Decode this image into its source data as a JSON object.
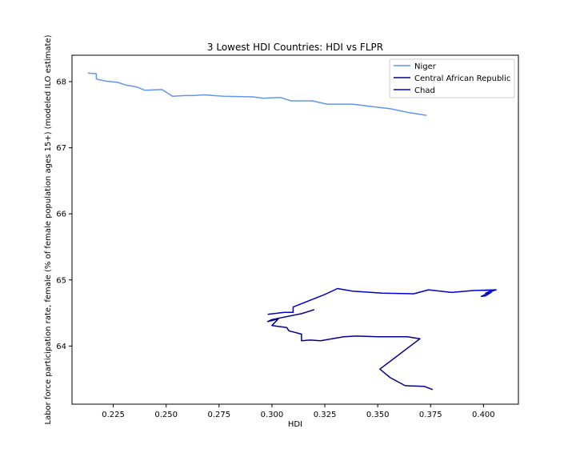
{
  "chart_data": {
    "type": "line",
    "title": "3 Lowest HDI Countries: HDI vs FLPR",
    "xlabel": "HDI",
    "ylabel": "Labor force participation rate, female (% of female population ages 15+) (modeled ILO estimate)",
    "xlim": [
      0.2055,
      0.4165
    ],
    "ylim": [
      63.12,
      68.4
    ],
    "xticks": [
      0.225,
      0.25,
      0.275,
      0.3,
      0.325,
      0.35,
      0.375,
      0.4
    ],
    "xtick_labels": [
      "0.225",
      "0.250",
      "0.275",
      "0.300",
      "0.325",
      "0.350",
      "0.375",
      "0.400"
    ],
    "yticks": [
      64,
      65,
      66,
      67,
      68
    ],
    "ytick_labels": [
      "64",
      "65",
      "66",
      "67",
      "68"
    ],
    "grid": false,
    "legend_position": "top-right",
    "series": [
      {
        "name": "Niger",
        "color": "#6495ED",
        "points": [
          [
            0.213,
            68.13
          ],
          [
            0.217,
            68.12
          ],
          [
            0.217,
            68.04
          ],
          [
            0.221,
            68.01
          ],
          [
            0.227,
            67.99
          ],
          [
            0.231,
            67.95
          ],
          [
            0.236,
            67.92
          ],
          [
            0.24,
            67.87
          ],
          [
            0.248,
            67.88
          ],
          [
            0.253,
            67.78
          ],
          [
            0.259,
            67.79
          ],
          [
            0.263,
            67.79
          ],
          [
            0.268,
            67.8
          ],
          [
            0.277,
            67.78
          ],
          [
            0.291,
            67.77
          ],
          [
            0.296,
            67.75
          ],
          [
            0.304,
            67.76
          ],
          [
            0.309,
            67.71
          ],
          [
            0.319,
            67.71
          ],
          [
            0.326,
            67.66
          ],
          [
            0.338,
            67.66
          ],
          [
            0.348,
            67.62
          ],
          [
            0.356,
            67.59
          ],
          [
            0.365,
            67.53
          ],
          [
            0.373,
            67.49
          ]
        ]
      },
      {
        "name": "Central African Republic",
        "color": "#00008B",
        "points": [
          [
            0.32,
            64.55
          ],
          [
            0.314,
            64.49
          ],
          [
            0.3,
            64.4
          ],
          [
            0.298,
            64.37
          ],
          [
            0.303,
            64.41
          ],
          [
            0.3,
            64.31
          ],
          [
            0.307,
            64.28
          ],
          [
            0.308,
            64.23
          ],
          [
            0.314,
            64.18
          ],
          [
            0.314,
            64.08
          ],
          [
            0.318,
            64.09
          ],
          [
            0.323,
            64.08
          ],
          [
            0.334,
            64.14
          ],
          [
            0.34,
            64.15
          ],
          [
            0.35,
            64.14
          ],
          [
            0.358,
            64.14
          ],
          [
            0.364,
            64.14
          ],
          [
            0.37,
            64.11
          ],
          [
            0.351,
            63.65
          ],
          [
            0.356,
            63.52
          ],
          [
            0.363,
            63.4
          ],
          [
            0.372,
            63.39
          ],
          [
            0.376,
            63.34
          ]
        ]
      },
      {
        "name": "Chad",
        "color": "#0000CD",
        "points": [
          [
            0.298,
            64.48
          ],
          [
            0.306,
            64.51
          ],
          [
            0.31,
            64.51
          ],
          [
            0.31,
            64.59
          ],
          [
            0.325,
            64.78
          ],
          [
            0.331,
            64.87
          ],
          [
            0.338,
            64.83
          ],
          [
            0.343,
            64.82
          ],
          [
            0.352,
            64.8
          ],
          [
            0.367,
            64.79
          ],
          [
            0.374,
            64.85
          ],
          [
            0.385,
            64.81
          ],
          [
            0.395,
            64.84
          ],
          [
            0.406,
            64.85
          ],
          [
            0.401,
            64.8
          ],
          [
            0.405,
            64.85
          ],
          [
            0.399,
            64.75
          ],
          [
            0.401,
            64.76
          ],
          [
            0.404,
            64.82
          ]
        ]
      }
    ]
  }
}
